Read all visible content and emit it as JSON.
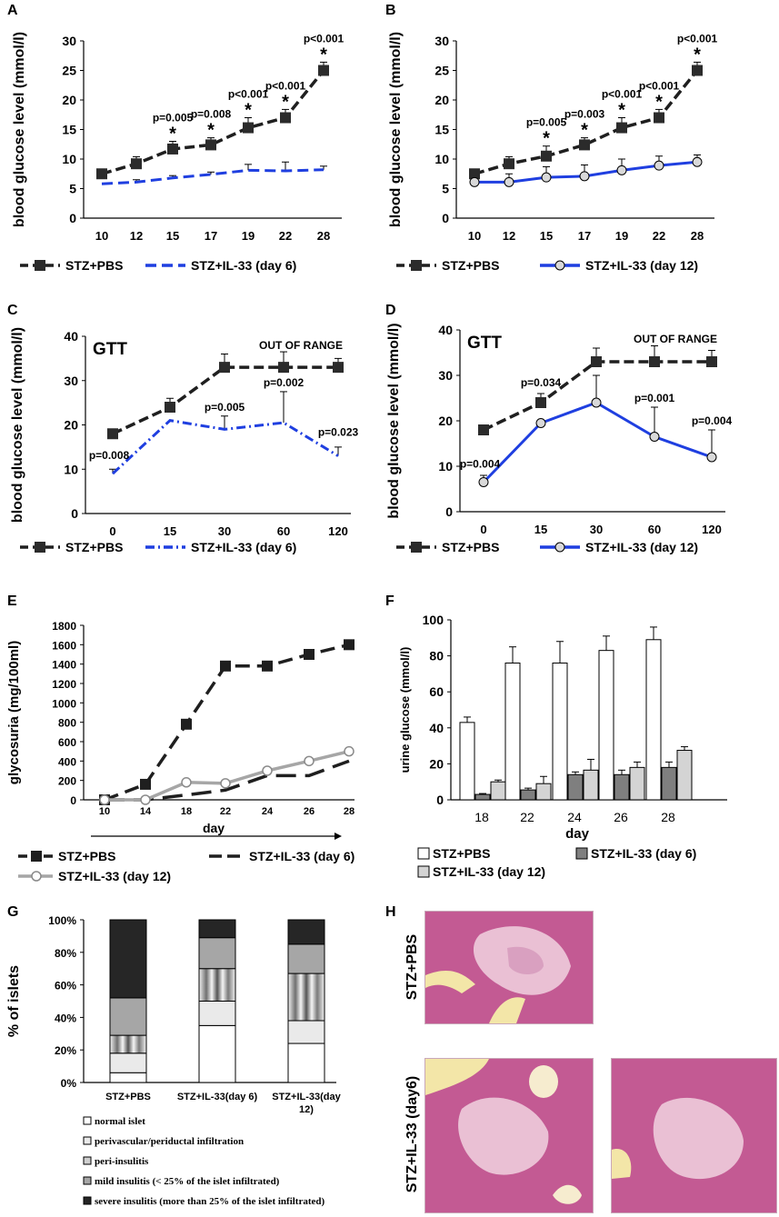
{
  "panels": {
    "A": "A",
    "B": "B",
    "C": "C",
    "D": "D",
    "E": "E",
    "F": "F",
    "G": "G",
    "H": "H"
  },
  "colors": {
    "pbs": "#1f1f1f",
    "il33": "#1f3fe0",
    "il33_d12_gray": "#a6a6a6",
    "bar_pbs": "#ffffff",
    "bar_d6": "#7f7f7f",
    "bar_d12": "#d4d4d4",
    "histo_pink": "#c35a93",
    "histo_light": "#eac0d4"
  },
  "chart_data": [
    {
      "id": "A",
      "type": "line",
      "xlabel": "",
      "ylabel": "blood glucose level (mmol/l)",
      "categories": [
        "10",
        "12",
        "15",
        "17",
        "19",
        "22",
        "28"
      ],
      "ylim": [
        0,
        30
      ],
      "yticks": [
        0,
        5,
        10,
        15,
        20,
        25,
        30
      ],
      "series": [
        {
          "name": "STZ+PBS",
          "values": [
            7.5,
            9.2,
            11.7,
            12.4,
            15.3,
            17,
            25
          ],
          "errors": [
            0,
            1.2,
            1.3,
            1.2,
            1.7,
            1.4,
            1.4
          ]
        },
        {
          "name": "STZ+IL-33 (day 6)",
          "values": [
            5.8,
            6.1,
            6.8,
            7.4,
            8.1,
            8,
            8.2
          ],
          "errors": [
            0,
            0.4,
            0.4,
            0.4,
            1,
            1.5,
            0.6
          ]
        }
      ],
      "annotations": [
        {
          "cat": "15",
          "p": "p=0.005",
          "star": "*"
        },
        {
          "cat": "17",
          "p": "p=0.008",
          "star": "*"
        },
        {
          "cat": "19",
          "p": "p<0.001",
          "star": "*"
        },
        {
          "cat": "22",
          "p": "p<0.001",
          "star": "*"
        },
        {
          "cat": "28",
          "p": "p<0.001",
          "star": "*"
        }
      ]
    },
    {
      "id": "B",
      "type": "line",
      "xlabel": "",
      "ylabel": "blood glucose level (mmol/l)",
      "categories": [
        "10",
        "12",
        "15",
        "17",
        "19",
        "22",
        "28"
      ],
      "ylim": [
        0,
        30
      ],
      "yticks": [
        0,
        5,
        10,
        15,
        20,
        25,
        30
      ],
      "series": [
        {
          "name": "STZ+PBS",
          "values": [
            7.5,
            9.2,
            10.5,
            12.4,
            15.3,
            17,
            25
          ],
          "errors": [
            0,
            1.2,
            1.7,
            1.2,
            1.7,
            1.4,
            1.4
          ]
        },
        {
          "name": "STZ+IL-33 (day 12)",
          "values": [
            6.1,
            6.1,
            6.9,
            7.1,
            8.1,
            8.9,
            9.5
          ],
          "errors": [
            0,
            1.4,
            1.8,
            1.9,
            1.9,
            1.6,
            1.2
          ]
        }
      ],
      "annotations": [
        {
          "cat": "15",
          "p": "p=0.005",
          "star": "*"
        },
        {
          "cat": "17",
          "p": "p=0.003",
          "star": "*"
        },
        {
          "cat": "19",
          "p": "p<0.001",
          "star": "*"
        },
        {
          "cat": "22",
          "p": "p<0.001",
          "star": "*"
        },
        {
          "cat": "28",
          "p": "p<0.001",
          "star": "*"
        }
      ]
    },
    {
      "id": "C",
      "type": "line",
      "title": "GTT",
      "note": "OUT OF RANGE",
      "xlabel": "",
      "ylabel": "blood glucose level (mmol/l)",
      "categories": [
        "0",
        "15",
        "30",
        "60",
        "120"
      ],
      "ylim": [
        0,
        40
      ],
      "yticks": [
        0,
        10,
        20,
        30,
        40
      ],
      "series": [
        {
          "name": "STZ+PBS",
          "values": [
            18,
            24,
            33,
            33,
            33
          ],
          "errors": [
            0,
            2,
            3,
            3.5,
            2
          ]
        },
        {
          "name": "STZ+IL-33 (day 6)",
          "values": [
            9,
            21,
            19,
            20.5,
            13
          ],
          "errors": [
            1,
            0,
            3,
            7,
            2
          ]
        }
      ],
      "annotations": [
        {
          "cat": "0",
          "p": "p=0.008"
        },
        {
          "cat": "30",
          "p": "p=0.005"
        },
        {
          "cat": "60",
          "p": "p=0.002"
        },
        {
          "cat": "120",
          "p": "p=0.023"
        }
      ]
    },
    {
      "id": "D",
      "type": "line",
      "title": "GTT",
      "note": "OUT OF RANGE",
      "xlabel": "",
      "ylabel": "blood glucose level (mmol/l)",
      "categories": [
        "0",
        "15",
        "30",
        "60",
        "120"
      ],
      "ylim": [
        0,
        40
      ],
      "yticks": [
        0,
        10,
        20,
        30,
        40
      ],
      "series": [
        {
          "name": "STZ+PBS",
          "values": [
            18,
            24,
            33,
            33,
            33
          ],
          "errors": [
            0,
            2,
            3,
            3.5,
            2.5
          ]
        },
        {
          "name": "STZ+IL-33 (day 12)",
          "values": [
            6.5,
            19.5,
            24,
            16.5,
            12
          ],
          "errors": [
            1.5,
            0,
            6,
            6.5,
            6
          ]
        }
      ],
      "annotations": [
        {
          "cat": "0",
          "p": "p=0.004"
        },
        {
          "cat": "15",
          "p": "p=0.034"
        },
        {
          "cat": "60",
          "p": "p=0.001"
        },
        {
          "cat": "120",
          "p": "p=0.004"
        }
      ]
    },
    {
      "id": "E",
      "type": "line",
      "xlabel": "day",
      "ylabel": "glycosuria (mg/100ml)",
      "categories": [
        "10",
        "14",
        "18",
        "22",
        "24",
        "26",
        "28"
      ],
      "ylim": [
        0,
        1800
      ],
      "yticks": [
        0,
        200,
        400,
        600,
        800,
        1000,
        1200,
        1400,
        1600,
        1800
      ],
      "series": [
        {
          "name": "STZ+PBS",
          "values": [
            0,
            160,
            780,
            1380,
            1380,
            1500,
            1600
          ]
        },
        {
          "name": "STZ+IL-33 (day 6)",
          "values": [
            0,
            0,
            50,
            100,
            250,
            250,
            400
          ]
        },
        {
          "name": "STZ+IL-33 (day 12)",
          "values": [
            0,
            0,
            180,
            170,
            300,
            400,
            500
          ]
        }
      ]
    },
    {
      "id": "F",
      "type": "bar",
      "xlabel": "day",
      "ylabel": "urine glucose (mmol/l)",
      "categories": [
        "18",
        "22",
        "24",
        "26",
        "28"
      ],
      "ylim": [
        0,
        100
      ],
      "yticks": [
        0,
        20,
        40,
        60,
        80,
        100
      ],
      "series": [
        {
          "name": "STZ+PBS",
          "values": [
            43,
            76,
            76,
            83,
            89
          ],
          "errors": [
            3,
            9,
            12,
            8,
            7
          ]
        },
        {
          "name": "STZ+IL-33 (day 6)",
          "values": [
            3,
            5.5,
            14,
            14,
            18
          ],
          "errors": [
            0.5,
            1,
            1.5,
            2.5,
            3
          ]
        },
        {
          "name": "STZ+IL-33 (day 12)",
          "values": [
            10,
            9,
            16.5,
            18,
            27.5
          ],
          "errors": [
            1,
            4,
            6,
            3,
            2
          ]
        }
      ]
    },
    {
      "id": "G",
      "type": "bar",
      "stacked": true,
      "xlabel": "",
      "ylabel": "% of islets",
      "categories": [
        "STZ+PBS",
        "STZ+IL-33(day 6)",
        "STZ+IL-33(day 12)"
      ],
      "ylim": [
        0,
        100
      ],
      "yticks": [
        "0%",
        "20%",
        "40%",
        "60%",
        "80%",
        "100%"
      ],
      "series": [
        {
          "name": "normal islet",
          "values": [
            6,
            35,
            24
          ]
        },
        {
          "name": "perivascular/periductal infiltration",
          "values": [
            12,
            15,
            14
          ]
        },
        {
          "name": "peri-insulitis",
          "values": [
            11,
            20,
            29
          ]
        },
        {
          "name": "mild insulitis (< 25% of the islet infiltrated)",
          "values": [
            23,
            19,
            18
          ]
        },
        {
          "name": "severe insulitis (more than 25% of the islet infiltrated)",
          "values": [
            48,
            11,
            15
          ]
        }
      ]
    }
  ],
  "histology": {
    "label_pbs": "STZ+PBS",
    "label_il33": "STZ+IL-33 (day6)"
  }
}
